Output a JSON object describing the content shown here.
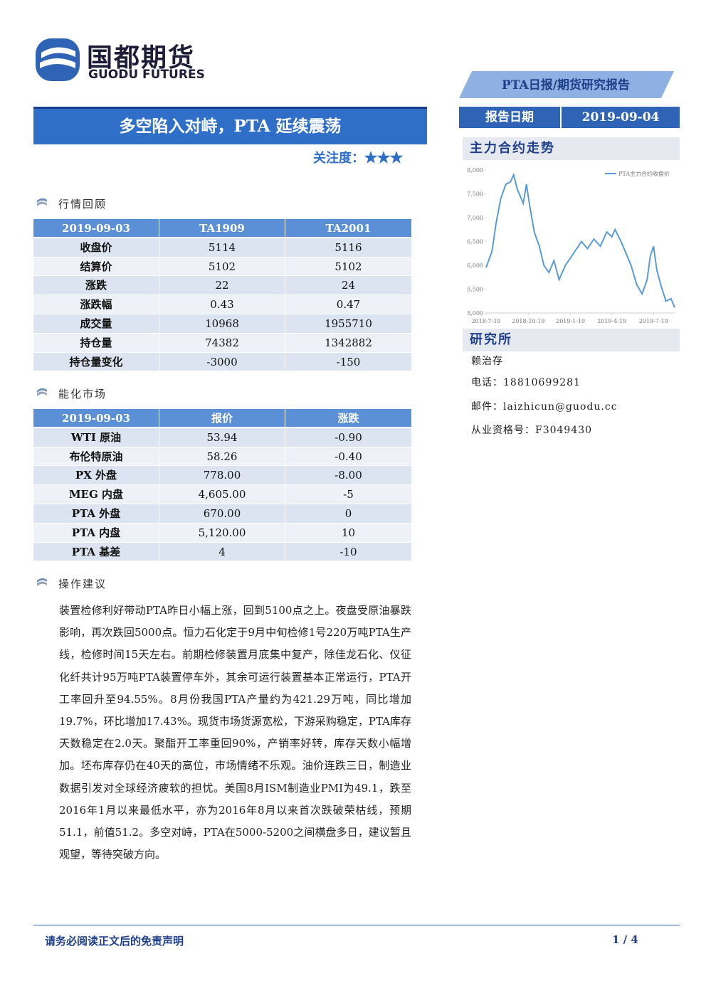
{
  "header": {
    "logo_cn": "国都期货",
    "logo_en": "GUODU FUTURES",
    "report_type": "PTA日报/期货研究报告",
    "date_label": "报告日期",
    "date": "2019-09-04"
  },
  "title": "多空陷入对峙，PTA 延续震荡",
  "attention": {
    "label": "关注度：",
    "stars": "★★★"
  },
  "market_review": {
    "title": "行情回顾",
    "header": [
      "2019-09-03",
      "TA1909",
      "TA2001"
    ],
    "rows": [
      [
        "收盘价",
        "5114",
        "5116"
      ],
      [
        "结算价",
        "5102",
        "5102"
      ],
      [
        "涨跌",
        "22",
        "24"
      ],
      [
        "涨跌幅",
        "0.43",
        "0.47"
      ],
      [
        "成交量",
        "10968",
        "1955710"
      ],
      [
        "持仓量",
        "74382",
        "1342882"
      ],
      [
        "持仓量变化",
        "-3000",
        "-150"
      ]
    ]
  },
  "energy_market": {
    "title": "能化市场",
    "header": [
      "2019-09-03",
      "报价",
      "涨跌"
    ],
    "rows": [
      [
        "WTI 原油",
        "53.94",
        "-0.90"
      ],
      [
        "布伦特原油",
        "58.26",
        "-0.40"
      ],
      [
        "PX 外盘",
        "778.00",
        "-8.00"
      ],
      [
        "MEG 内盘",
        "4,605.00",
        "-5"
      ],
      [
        "PTA 外盘",
        "670.00",
        "0"
      ],
      [
        "PTA 内盘",
        "5,120.00",
        "10"
      ],
      [
        "PTA 基差",
        "4",
        "-10"
      ]
    ]
  },
  "advice": {
    "title": "操作建议",
    "text": "装置检修利好带动PTA昨日小幅上涨，回到5100点之上。夜盘受原油暴跌影响，再次跌回5000点。恒力石化定于9月中旬检修1号220万吨PTA生产线，检修时间15天左右。前期检修装置月底集中复产，除佳龙石化、仪征化纤共计95万吨PTA装置停车外，其余可运行装置基本正常运行，PTA开工率回升至94.55%。8月份我国PTA产量约为421.29万吨，同比增加19.7%，环比增加17.43%。现货市场货源宽松，下游采购稳定，PTA库存天数稳定在2.0天。聚酯开工率重回90%，产销率好转，库存天数小幅增加。坯布库存仍在40天的高位，市场情绪不乐观。油价连跌三日，制造业数据引发对全球经济疲软的担忧。美国8月ISM制造业PMI为49.1，跌至2016年1月以来最低水平，亦为2016年8月以来首次跌破荣枯线，预期51.1，前值51.2。多空对峙，PTA在5000-5200之间横盘多日，建议暂且观望，等待突破方向。"
  },
  "chart_section": "主力合约走势",
  "chart_data": {
    "type": "line",
    "x": [
      "2018-7-19",
      "2018-8-1",
      "2018-8-10",
      "2018-8-20",
      "2018-8-31",
      "2018-9-10",
      "2018-9-17",
      "2018-9-25",
      "2018-10-8",
      "2018-10-15",
      "2018-10-22",
      "2018-11-1",
      "2018-11-12",
      "2018-11-22",
      "2018-12-3",
      "2018-12-14",
      "2018-12-25",
      "2019-1-8",
      "2019-1-22",
      "2019-2-12",
      "2019-2-25",
      "2019-3-11",
      "2019-3-25",
      "2019-4-8",
      "2019-4-19",
      "2019-4-26",
      "2019-5-9",
      "2019-5-20",
      "2019-5-31",
      "2019-6-12",
      "2019-6-24",
      "2019-7-5",
      "2019-7-12",
      "2019-7-19",
      "2019-7-26",
      "2019-8-5",
      "2019-8-15",
      "2019-8-26",
      "2019-9-3"
    ],
    "series": [
      {
        "name": "PTA主力合约收盘价",
        "color": "#5b9bd5",
        "values": [
          5950,
          6300,
          6900,
          7400,
          7700,
          7750,
          7900,
          7600,
          7300,
          7700,
          7250,
          6700,
          6400,
          6000,
          5850,
          6100,
          5700,
          6000,
          6200,
          6500,
          6350,
          6550,
          6400,
          6700,
          6600,
          6750,
          6500,
          6250,
          6000,
          5600,
          5400,
          5700,
          6200,
          6400,
          5900,
          5550,
          5250,
          5300,
          5114
        ]
      }
    ],
    "xlim": [
      "2018-7-19",
      "2019-9-3"
    ],
    "xticks": [
      "2018-7-19",
      "2018-10-19",
      "2019-1-19",
      "2019-4-19",
      "2019-7-19"
    ],
    "ylim": [
      5000,
      8000
    ],
    "yticks": [
      {
        "value": 5000,
        "label": "5,000"
      },
      {
        "value": 5500,
        "label": "5,500"
      },
      {
        "value": 6000,
        "label": "6,000"
      },
      {
        "value": 6500,
        "label": "6,500"
      },
      {
        "value": 7000,
        "label": "7,000"
      },
      {
        "value": 7500,
        "label": "7,500"
      },
      {
        "value": 8000,
        "label": "8,000"
      }
    ],
    "legend": "upper right"
  },
  "research": {
    "title": "研究所",
    "name": "赖治存",
    "phone": "电话：18810699281",
    "email": "邮件：laizhicun@guodu.cc",
    "license": "从业资格号：F3049430"
  },
  "footer": {
    "disclaimer": "请务必阅读正文后的免责声明",
    "page": "1 / 4"
  }
}
